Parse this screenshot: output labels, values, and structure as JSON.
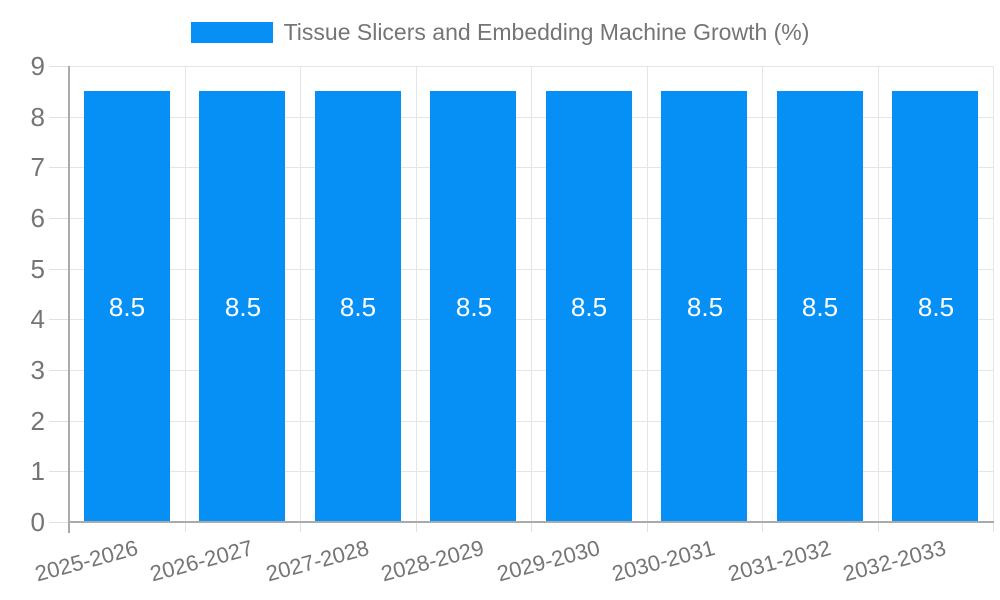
{
  "chart_data": {
    "type": "bar",
    "title": "Tissue Slicers and Embedding Machine Growth (%)",
    "categories": [
      "2025-2026",
      "2026-2027",
      "2027-2028",
      "2028-2029",
      "2029-2030",
      "2030-2031",
      "2031-2032",
      "2032-2033"
    ],
    "values": [
      8.5,
      8.5,
      8.5,
      8.5,
      8.5,
      8.5,
      8.5,
      8.5
    ],
    "value_labels": [
      "8.5",
      "8.5",
      "8.5",
      "8.5",
      "8.5",
      "8.5",
      "8.5",
      "8.5"
    ],
    "xlabel": "",
    "ylabel": "",
    "ylim": [
      0,
      9
    ],
    "yticks": [
      "0",
      "1",
      "2",
      "3",
      "4",
      "5",
      "6",
      "7",
      "8",
      "9"
    ],
    "grid": true,
    "legend_position": "top",
    "colors": {
      "bar": "#0690F5",
      "grid": "#E5E5E5",
      "tick": "#E0E0E0",
      "axis": "#AAAAAA",
      "tick_label": "#757575",
      "title": "#757575",
      "value_label": "#FFFFFF",
      "background": "#FFFFFF"
    }
  }
}
